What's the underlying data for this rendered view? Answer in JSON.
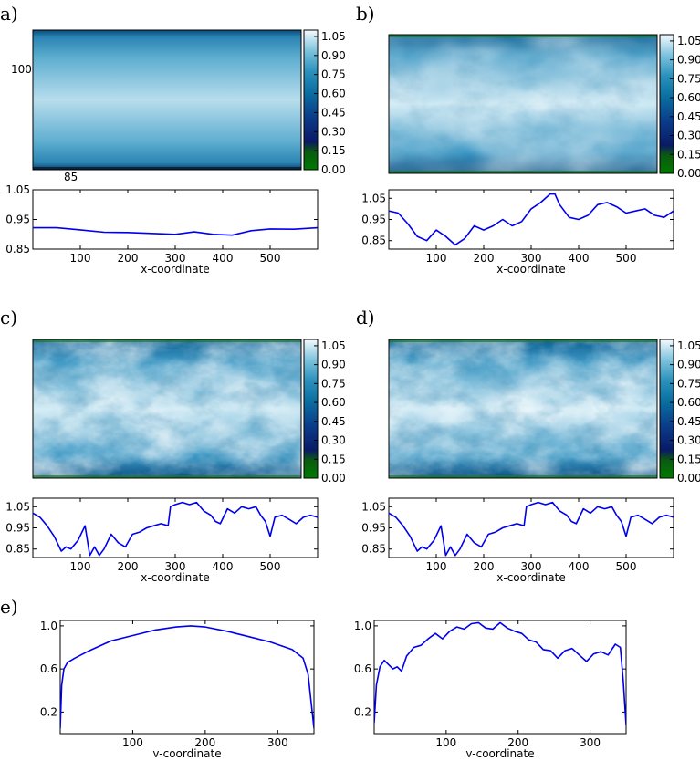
{
  "panel_labels": [
    "a)",
    "b)",
    "c)",
    "d)",
    "e)"
  ],
  "colors": {
    "line": "#0000ee",
    "cmap": [
      "#007a00",
      "#0a1a66",
      "#0a3d8a",
      "#0a6ea0",
      "#2a90bb",
      "#7cc2dd",
      "#f4fafd"
    ]
  },
  "extra_labels": {
    "a_y": "100",
    "a_x": "85"
  },
  "chart_data": [
    {
      "id": "a",
      "type": "heatmap",
      "field": "smooth-vertical-gradient",
      "colorbar_ticks": [
        "1.05",
        "0.90",
        "0.75",
        "0.60",
        "0.45",
        "0.30",
        "0.15",
        "0.00"
      ],
      "colorbar_range": [
        0,
        1.1
      ]
    },
    {
      "id": "a-profile",
      "type": "line",
      "xlabel": "x-coordinate",
      "xlim": [
        0,
        600
      ],
      "ylim": [
        0.85,
        1.05
      ],
      "xticks": [
        "100",
        "200",
        "300",
        "400",
        "500"
      ],
      "yticks": [
        "1.05",
        "0.95",
        "0.85"
      ],
      "x": [
        0,
        50,
        100,
        150,
        200,
        250,
        300,
        340,
        380,
        420,
        460,
        500,
        550,
        600
      ],
      "y": [
        0.922,
        0.922,
        0.915,
        0.907,
        0.906,
        0.903,
        0.9,
        0.908,
        0.9,
        0.897,
        0.912,
        0.918,
        0.917,
        0.922
      ]
    },
    {
      "id": "b",
      "type": "heatmap",
      "field": "turbulent-mild",
      "colorbar_ticks": [
        "1.05",
        "0.90",
        "0.75",
        "0.60",
        "0.45",
        "0.30",
        "0.15",
        "0.00"
      ],
      "colorbar_range": [
        0,
        1.1
      ]
    },
    {
      "id": "b-profile",
      "type": "line",
      "xlabel": "x-coordinate",
      "xlim": [
        0,
        600
      ],
      "ylim": [
        0.81,
        1.09
      ],
      "xticks": [
        "100",
        "200",
        "300",
        "400",
        "500"
      ],
      "yticks": [
        "1.05",
        "0.95",
        "0.85"
      ],
      "x": [
        0,
        20,
        40,
        60,
        80,
        100,
        120,
        140,
        160,
        180,
        200,
        220,
        240,
        260,
        280,
        300,
        320,
        340,
        350,
        360,
        380,
        400,
        420,
        440,
        460,
        480,
        500,
        520,
        540,
        560,
        580,
        600
      ],
      "y": [
        0.99,
        0.98,
        0.93,
        0.87,
        0.85,
        0.9,
        0.87,
        0.83,
        0.86,
        0.92,
        0.9,
        0.92,
        0.95,
        0.92,
        0.94,
        1.0,
        1.03,
        1.07,
        1.07,
        1.02,
        0.96,
        0.95,
        0.97,
        1.02,
        1.03,
        1.01,
        0.98,
        0.99,
        1.0,
        0.97,
        0.96,
        0.99
      ]
    },
    {
      "id": "c",
      "type": "heatmap",
      "field": "turbulent-strong",
      "colorbar_ticks": [
        "1.05",
        "0.90",
        "0.75",
        "0.60",
        "0.45",
        "0.30",
        "0.15",
        "0.00"
      ],
      "colorbar_range": [
        0,
        1.1
      ]
    },
    {
      "id": "c-profile",
      "type": "line",
      "xlabel": "x-coordinate",
      "xlim": [
        0,
        600
      ],
      "ylim": [
        0.81,
        1.09
      ],
      "xticks": [
        "100",
        "200",
        "300",
        "400",
        "500"
      ],
      "yticks": [
        "1.05",
        "0.95",
        "0.85"
      ],
      "x": [
        0,
        15,
        30,
        45,
        60,
        70,
        80,
        95,
        110,
        120,
        130,
        140,
        150,
        165,
        180,
        195,
        210,
        225,
        240,
        255,
        270,
        285,
        290,
        300,
        315,
        330,
        345,
        360,
        375,
        385,
        395,
        410,
        425,
        440,
        455,
        470,
        480,
        490,
        500,
        510,
        525,
        540,
        555,
        570,
        585,
        600
      ],
      "y": [
        1.02,
        1.0,
        0.96,
        0.91,
        0.84,
        0.86,
        0.85,
        0.89,
        0.96,
        0.82,
        0.86,
        0.82,
        0.85,
        0.92,
        0.88,
        0.86,
        0.92,
        0.93,
        0.95,
        0.96,
        0.97,
        0.96,
        1.05,
        1.06,
        1.07,
        1.06,
        1.07,
        1.03,
        1.01,
        0.98,
        0.97,
        1.04,
        1.02,
        1.05,
        1.04,
        1.05,
        1.01,
        0.98,
        0.91,
        1.0,
        1.01,
        0.99,
        0.97,
        1.0,
        1.01,
        1.0
      ]
    },
    {
      "id": "d",
      "type": "heatmap",
      "field": "turbulent-strong",
      "colorbar_ticks": [
        "1.05",
        "0.90",
        "0.75",
        "0.60",
        "0.45",
        "0.30",
        "0.15",
        "0.00"
      ],
      "colorbar_range": [
        0,
        1.1
      ]
    },
    {
      "id": "d-profile",
      "type": "line",
      "xlabel": "x-coordinate",
      "xlim": [
        0,
        600
      ],
      "ylim": [
        0.81,
        1.09
      ],
      "xticks": [
        "100",
        "200",
        "300",
        "400",
        "500"
      ],
      "yticks": [
        "1.05",
        "0.95",
        "0.85"
      ],
      "x": [
        0,
        15,
        30,
        45,
        60,
        70,
        80,
        95,
        110,
        120,
        130,
        140,
        150,
        165,
        180,
        195,
        210,
        225,
        240,
        255,
        270,
        285,
        290,
        300,
        315,
        330,
        345,
        360,
        375,
        385,
        395,
        410,
        425,
        440,
        455,
        470,
        480,
        490,
        500,
        510,
        525,
        540,
        555,
        570,
        585,
        600
      ],
      "y": [
        1.02,
        1.0,
        0.96,
        0.91,
        0.84,
        0.86,
        0.85,
        0.89,
        0.96,
        0.82,
        0.86,
        0.82,
        0.85,
        0.92,
        0.88,
        0.86,
        0.92,
        0.93,
        0.95,
        0.96,
        0.97,
        0.96,
        1.05,
        1.06,
        1.07,
        1.06,
        1.07,
        1.03,
        1.01,
        0.98,
        0.97,
        1.04,
        1.02,
        1.05,
        1.04,
        1.05,
        1.01,
        0.98,
        0.91,
        1.0,
        1.01,
        0.99,
        0.97,
        1.0,
        1.01,
        1.0
      ]
    },
    {
      "id": "e-left",
      "type": "line",
      "xlabel": "y-coordinate",
      "xlim": [
        0,
        350
      ],
      "ylim": [
        0.0,
        1.05
      ],
      "xticks": [
        "100",
        "200",
        "300"
      ],
      "yticks": [
        "1.0",
        "0.6",
        "0.2"
      ],
      "x": [
        0,
        2,
        5,
        10,
        20,
        40,
        70,
        100,
        130,
        160,
        180,
        200,
        230,
        260,
        290,
        320,
        335,
        342,
        346,
        350
      ],
      "y": [
        0.05,
        0.45,
        0.6,
        0.66,
        0.7,
        0.77,
        0.86,
        0.91,
        0.96,
        0.99,
        1.0,
        0.99,
        0.95,
        0.9,
        0.85,
        0.78,
        0.7,
        0.55,
        0.3,
        0.05
      ]
    },
    {
      "id": "e-right",
      "type": "line",
      "xlabel": "y-coordinate",
      "xlim": [
        0,
        350
      ],
      "ylim": [
        0.0,
        1.05
      ],
      "xticks": [
        "100",
        "200",
        "300"
      ],
      "yticks": [
        "1.0",
        "0.6",
        "0.2"
      ],
      "x": [
        0,
        3,
        8,
        14,
        20,
        26,
        32,
        38,
        45,
        55,
        65,
        75,
        85,
        95,
        105,
        115,
        125,
        135,
        145,
        155,
        165,
        175,
        185,
        195,
        205,
        215,
        225,
        235,
        245,
        255,
        265,
        275,
        285,
        295,
        305,
        315,
        325,
        335,
        342,
        346,
        350
      ],
      "y": [
        0.1,
        0.45,
        0.62,
        0.68,
        0.64,
        0.6,
        0.62,
        0.58,
        0.72,
        0.8,
        0.82,
        0.88,
        0.93,
        0.88,
        0.95,
        0.99,
        0.97,
        1.02,
        1.03,
        0.98,
        0.97,
        1.03,
        0.98,
        0.95,
        0.93,
        0.87,
        0.85,
        0.78,
        0.77,
        0.7,
        0.77,
        0.79,
        0.73,
        0.67,
        0.74,
        0.76,
        0.73,
        0.83,
        0.8,
        0.5,
        0.08
      ]
    }
  ]
}
